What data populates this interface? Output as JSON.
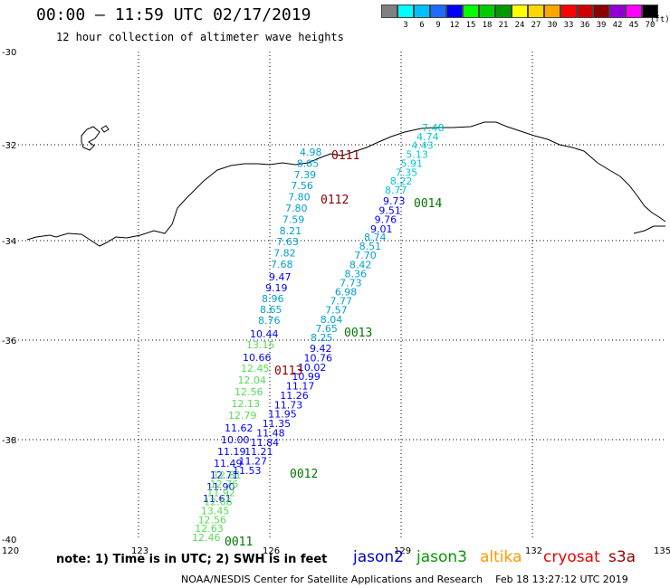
{
  "title": "00:00 – 11:59 UTC 02/17/2019",
  "subtitle": "12 hour collection of altimeter wave heights",
  "scale": {
    "unit": "(ft)",
    "bins": [
      {
        "label": "",
        "color": "#808080"
      },
      {
        "label": "3",
        "color": "#00ffff"
      },
      {
        "label": "6",
        "color": "#00bfff"
      },
      {
        "label": "9",
        "color": "#1e6cff"
      },
      {
        "label": "12",
        "color": "#0000ff"
      },
      {
        "label": "15",
        "color": "#00ff00"
      },
      {
        "label": "18",
        "color": "#00cd00"
      },
      {
        "label": "21",
        "color": "#009a00"
      },
      {
        "label": "24",
        "color": "#ffff00"
      },
      {
        "label": "27",
        "color": "#ffd700"
      },
      {
        "label": "30",
        "color": "#ffa500"
      },
      {
        "label": "33",
        "color": "#ff0000"
      },
      {
        "label": "36",
        "color": "#cd0000"
      },
      {
        "label": "39",
        "color": "#8b0000"
      },
      {
        "label": "42",
        "color": "#9400d3"
      },
      {
        "label": "45",
        "color": "#ff00ff"
      },
      {
        "label": "70",
        "color": "#000000"
      }
    ]
  },
  "axes": {
    "lat_labels": [
      "-30",
      "-32",
      "-34",
      "-36",
      "-38",
      "-40"
    ],
    "lon_labels": [
      "120",
      "123",
      "126",
      "129",
      "132",
      "135"
    ]
  },
  "tracks": [
    {
      "color": "#00a0d0",
      "heights": [
        "4.98",
        "8.85",
        "7.39",
        "7.56",
        "7.80",
        "7.80",
        "7.59",
        "8.21",
        "7.63",
        "7.82",
        "7.68"
      ]
    },
    {
      "color": "#0000ff",
      "heights": [
        "9.47",
        "9.19"
      ]
    },
    {
      "color": "#00a0d0",
      "heights": [
        "8.96",
        "8.65",
        "8.76"
      ]
    },
    {
      "color": "#0000ff",
      "heights": [
        "10.44"
      ]
    },
    {
      "color": "#55dd55",
      "heights": [
        "13.15"
      ]
    },
    {
      "color": "#0000ff",
      "heights": [
        "10.66"
      ]
    },
    {
      "color": "#55dd55",
      "heights": [
        "12.45",
        "12.04",
        "12.56",
        "12.13",
        "12.79"
      ]
    },
    {
      "color": "#0000ff",
      "heights": [
        "11.62",
        "10.00",
        "11.19",
        "11.49",
        "12.71",
        "11.90",
        "11.61"
      ]
    },
    {
      "color": "#55dd55",
      "heights": [
        "12.81",
        "12.76",
        "11.92",
        "12.66",
        "13.45",
        "12.56",
        "12.63",
        "12.46"
      ]
    },
    {
      "color": "#00c8d8",
      "heights": [
        "7.48",
        "4.74",
        "4.43",
        "5.13",
        "5.91",
        "7.35",
        "8.22",
        "8.77"
      ]
    },
    {
      "color": "#0000ff",
      "heights": [
        "9.73",
        "9.51",
        "9.76",
        "9.01"
      ]
    },
    {
      "color": "#00a0d0",
      "heights": [
        "8.74",
        "8.51",
        "7.70",
        "8.42",
        "8.36",
        "7.73",
        "6.98",
        "7.77",
        "7.57",
        "8.04",
        "7.65",
        "8.25"
      ]
    },
    {
      "color": "#0000ff",
      "heights": [
        "9.42",
        "10.76",
        "10.02",
        "10.99",
        "11.17",
        "11.26",
        "11.73",
        "11.95",
        "11.35",
        "11.48",
        "11.84",
        "11.21",
        "11.27",
        "11.53"
      ]
    }
  ],
  "labels": [
    {
      "text": "0111",
      "color": "#880000"
    },
    {
      "text": "0112",
      "color": "#880000"
    },
    {
      "text": "0014",
      "color": "#007700"
    },
    {
      "text": "0013",
      "color": "#007700"
    },
    {
      "text": "0113",
      "color": "#880000"
    },
    {
      "text": "0012",
      "color": "#007700"
    },
    {
      "text": "0011",
      "color": "#007700"
    }
  ],
  "note": "note: 1) Time is in UTC; 2) SWH is in feet",
  "satellites": [
    {
      "name": "jason2",
      "color": "#0000cc"
    },
    {
      "name": "jason3",
      "color": "#009900"
    },
    {
      "name": "altika",
      "color": "#ff9900"
    },
    {
      "name": "cryosat",
      "color": "#ee0000"
    },
    {
      "name": "s3a",
      "color": "#990000"
    }
  ],
  "credit": "NOAA/NESDIS Center for Satellite Applications and Research    Feb 18 13:27:12 UTC 2019"
}
